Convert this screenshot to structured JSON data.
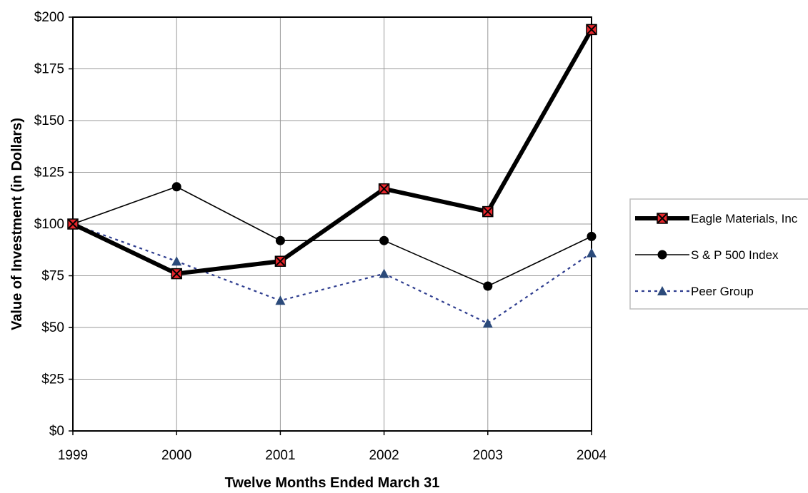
{
  "chart_data": {
    "type": "line",
    "title": "",
    "xlabel": "Twelve Months Ended March 31",
    "ylabel": "Value of Investment (in Dollars)",
    "categories": [
      "1999",
      "2000",
      "2001",
      "2002",
      "2003",
      "2004"
    ],
    "ylim": [
      0,
      200
    ],
    "y_ticks": [
      0,
      25,
      50,
      75,
      100,
      125,
      150,
      175,
      200
    ],
    "y_tick_labels": [
      "$0",
      "$25",
      "$50",
      "$75",
      "$100",
      "$125",
      "$150",
      "$175",
      "$200"
    ],
    "grid": true,
    "legend_position": "right",
    "series": [
      {
        "name": "Eagle Materials, Inc",
        "values": [
          100,
          76,
          82,
          117,
          106,
          194
        ],
        "color": "#000000",
        "marker": "square-x",
        "marker_fill": "#e8262c",
        "line_style": "solid-thick"
      },
      {
        "name": "S & P 500 Index",
        "values": [
          100,
          118,
          92,
          92,
          70,
          94
        ],
        "color": "#000000",
        "marker": "circle",
        "marker_fill": "#000000",
        "line_style": "solid-thin"
      },
      {
        "name": "Peer Group",
        "values": [
          100,
          82,
          63,
          76,
          52,
          86
        ],
        "color": "#2e3d8f",
        "marker": "triangle",
        "marker_fill": "#2b4a7a",
        "line_style": "dotted"
      }
    ]
  }
}
